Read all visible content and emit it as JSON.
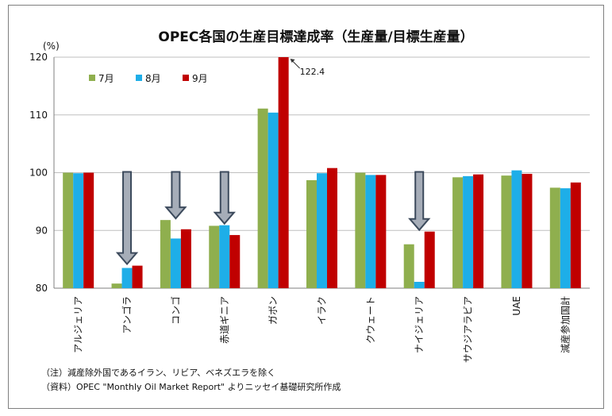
{
  "chart_data": {
    "type": "bar",
    "title": "OPEC各国の生産目標達成率（生産量/目標生産量）",
    "ylabel": "(%)",
    "ylim": [
      80,
      120
    ],
    "yticks": [
      80,
      90,
      100,
      110,
      120
    ],
    "grid": true,
    "legend_position": "top-left",
    "categories": [
      "アルジェリア",
      "アンゴラ",
      "コンゴ",
      "赤道ギニア",
      "ガボン",
      "イラク",
      "クウェート",
      "ナイジェリア",
      "サウジアラビア",
      "UAE",
      "減産参加国計"
    ],
    "series": [
      {
        "name": "7月",
        "color": "#8faf4e",
        "values": [
          100.0,
          80.8,
          91.8,
          90.8,
          111.1,
          98.7,
          100.0,
          87.6,
          99.2,
          99.5,
          97.4
        ]
      },
      {
        "name": "8月",
        "color": "#1eaee8",
        "values": [
          99.9,
          83.5,
          88.6,
          90.9,
          110.4,
          99.9,
          99.6,
          81.1,
          99.4,
          100.4,
          97.3
        ]
      },
      {
        "name": "9月",
        "color": "#c00000",
        "values": [
          100.0,
          83.9,
          90.2,
          89.2,
          122.4,
          100.8,
          99.6,
          89.8,
          99.7,
          99.8,
          98.3
        ]
      }
    ],
    "annotations": [
      {
        "text": "122.4",
        "category": "ガボン",
        "series": "9月"
      }
    ],
    "arrow_categories": [
      "アンゴラ",
      "コンゴ",
      "赤道ギニア",
      "ナイジェリア"
    ]
  },
  "notes": [
    "（注）減産除外国であるイラン、リビア、ベネズエラを除く",
    "（資料）OPEC \"Monthly Oil Market Report\" よりニッセイ基礎研究所作成"
  ]
}
